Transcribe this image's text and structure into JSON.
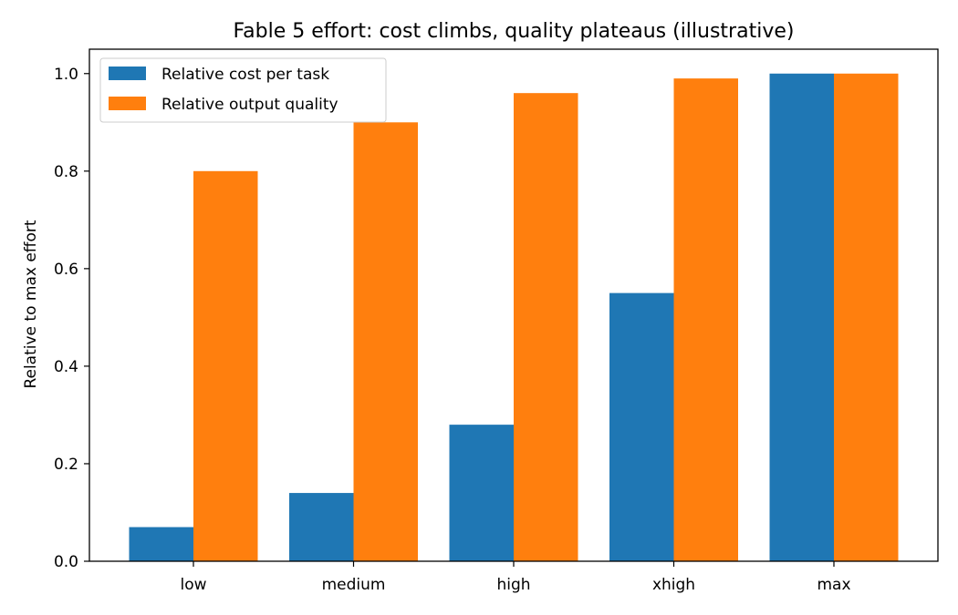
{
  "chart_data": {
    "type": "bar",
    "title": "Fable 5 effort: cost climbs, quality plateaus (illustrative)",
    "xlabel": "",
    "ylabel": "Relative to max effort",
    "categories": [
      "low",
      "medium",
      "high",
      "xhigh",
      "max"
    ],
    "series": [
      {
        "name": "Relative cost per task",
        "values": [
          0.07,
          0.14,
          0.28,
          0.55,
          1.0
        ],
        "color": "#1f77b4"
      },
      {
        "name": "Relative output quality",
        "values": [
          0.8,
          0.9,
          0.96,
          0.99,
          1.0
        ],
        "color": "#ff7f0e"
      }
    ],
    "ylim": [
      0,
      1.05
    ],
    "yticks": [
      "0.0",
      "0.2",
      "0.4",
      "0.6",
      "0.8",
      "1.0"
    ],
    "grid": false,
    "legend_position": "top-left"
  }
}
